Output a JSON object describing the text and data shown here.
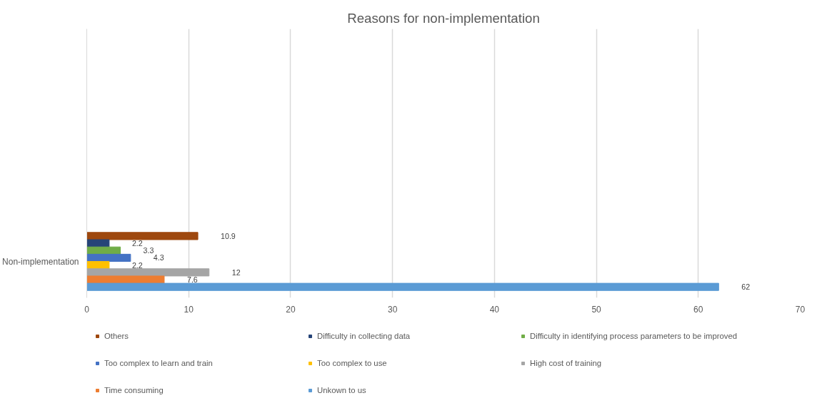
{
  "chart_data": {
    "type": "bar",
    "orientation": "horizontal",
    "title": "Reasons for non-implementation",
    "categories": [
      "Non-implementation"
    ],
    "series": [
      {
        "name": "Others",
        "color": "#9e480e",
        "values": [
          10.9
        ]
      },
      {
        "name": "Difficulty in collecting data",
        "color": "#264478",
        "values": [
          2.2
        ]
      },
      {
        "name": "Difficulty in identifying process parameters to be improved",
        "color": "#70ad47",
        "values": [
          3.3
        ]
      },
      {
        "name": "Too complex to learn and train",
        "color": "#4472c4",
        "values": [
          4.3
        ]
      },
      {
        "name": "Too complex to use",
        "color": "#ffc000",
        "values": [
          2.2
        ]
      },
      {
        "name": "High cost of training",
        "color": "#a5a5a5",
        "values": [
          12
        ]
      },
      {
        "name": "Time consuming",
        "color": "#ed7d31",
        "values": [
          7.6
        ]
      },
      {
        "name": "Unkown to us",
        "color": "#5b9bd5",
        "values": [
          62
        ]
      }
    ],
    "xlim": [
      0,
      70
    ],
    "xticks": [
      0,
      10,
      20,
      30,
      40,
      50,
      60,
      70
    ],
    "grid": "x",
    "data_labels": true,
    "legend": "bottom"
  }
}
